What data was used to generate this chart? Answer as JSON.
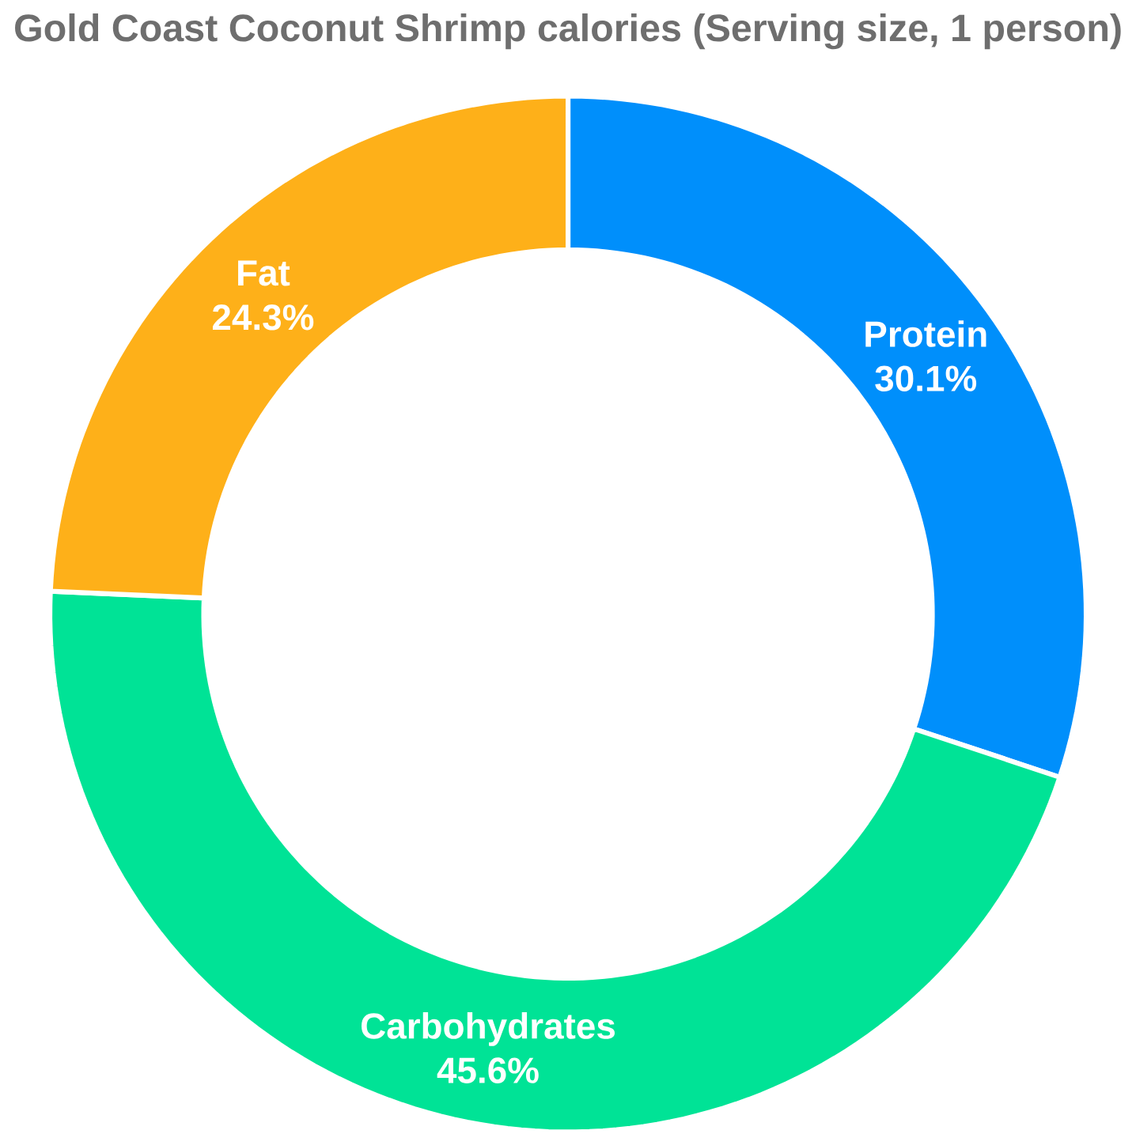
{
  "chart_data": {
    "type": "donut",
    "title": "Gold Coast Coconut Shrimp calories (Serving size, 1 person)",
    "categories": [
      "Protein",
      "Carbohydrates",
      "Fat"
    ],
    "values": [
      30.1,
      45.6,
      24.3
    ],
    "colors": [
      "#008ffb",
      "#00e396",
      "#feb019"
    ],
    "value_labels": [
      "30.1%",
      "45.6%",
      "24.3%"
    ]
  }
}
